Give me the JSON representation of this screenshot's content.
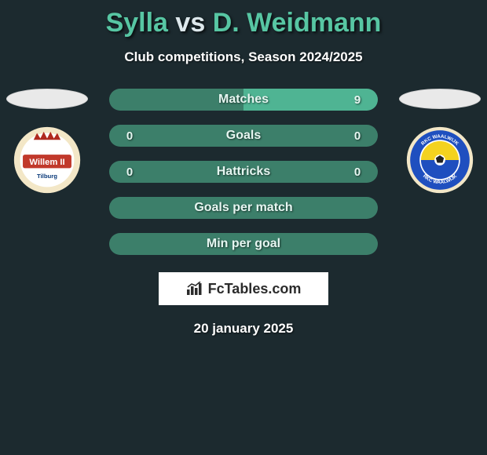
{
  "background_color": "#1c2a2f",
  "title": {
    "player_a": "Sylla",
    "vs": "vs",
    "player_b": "D. Weidmann",
    "color_a": "#57c6a3",
    "color_vs": "#dde8ec",
    "color_b": "#57c6a3",
    "fontsize": 34
  },
  "subtitle": "Club competitions, Season 2024/2025",
  "row_style": {
    "height": 28,
    "border_radius": 14,
    "gap": 18,
    "fontsize": 16,
    "text_color_primary": "#e6f6f1",
    "text_color_value": "#e6f6f1"
  },
  "bar_colors": {
    "neutral": "#3c7f6a",
    "full": "#4fb493",
    "track": "#3c7f6a"
  },
  "rows": [
    {
      "label": "Matches",
      "value_a": "",
      "value_b": "9",
      "fill_a": 0.0,
      "fill_b": 1.0
    },
    {
      "label": "Goals",
      "value_a": "0",
      "value_b": "0",
      "fill_a": 0.0,
      "fill_b": 0.0
    },
    {
      "label": "Hattricks",
      "value_a": "0",
      "value_b": "0",
      "fill_a": 0.0,
      "fill_b": 0.0
    },
    {
      "label": "Goals per match",
      "value_a": "",
      "value_b": "",
      "fill_a": 0.0,
      "fill_b": 0.0
    },
    {
      "label": "Min per goal",
      "value_a": "",
      "value_b": "",
      "fill_a": 0.0,
      "fill_b": 0.0
    }
  ],
  "side_left": {
    "oval_color": "#e9e9e9",
    "crest": {
      "bg": "#f3e7c7",
      "inner_bg": "#ffffff",
      "band_color": "#c1392b",
      "band_text": "Willem II",
      "band_text_color": "#ffffff",
      "crown_color": "#b02a1f",
      "sub_text": "Tilburg",
      "sub_text_color": "#0a3a7a"
    }
  },
  "side_right": {
    "oval_color": "#e9e9e9",
    "crest": {
      "bg": "#f3e7c7",
      "ring_color": "#1f4fbf",
      "ring_text_top": "RKC WAALWIJK",
      "ring_text_bottom": "RKC WAALWIJK",
      "ring_text_color": "#ffffff",
      "center_top_color": "#f4d21f",
      "center_bottom_color": "#1f4fbf",
      "ball_color": "#222222"
    }
  },
  "watermark": {
    "text": "FcTables.com",
    "bg": "#ffffff",
    "text_color": "#2b2b2b",
    "icon_color": "#2b2b2b"
  },
  "date": "20 january 2025"
}
